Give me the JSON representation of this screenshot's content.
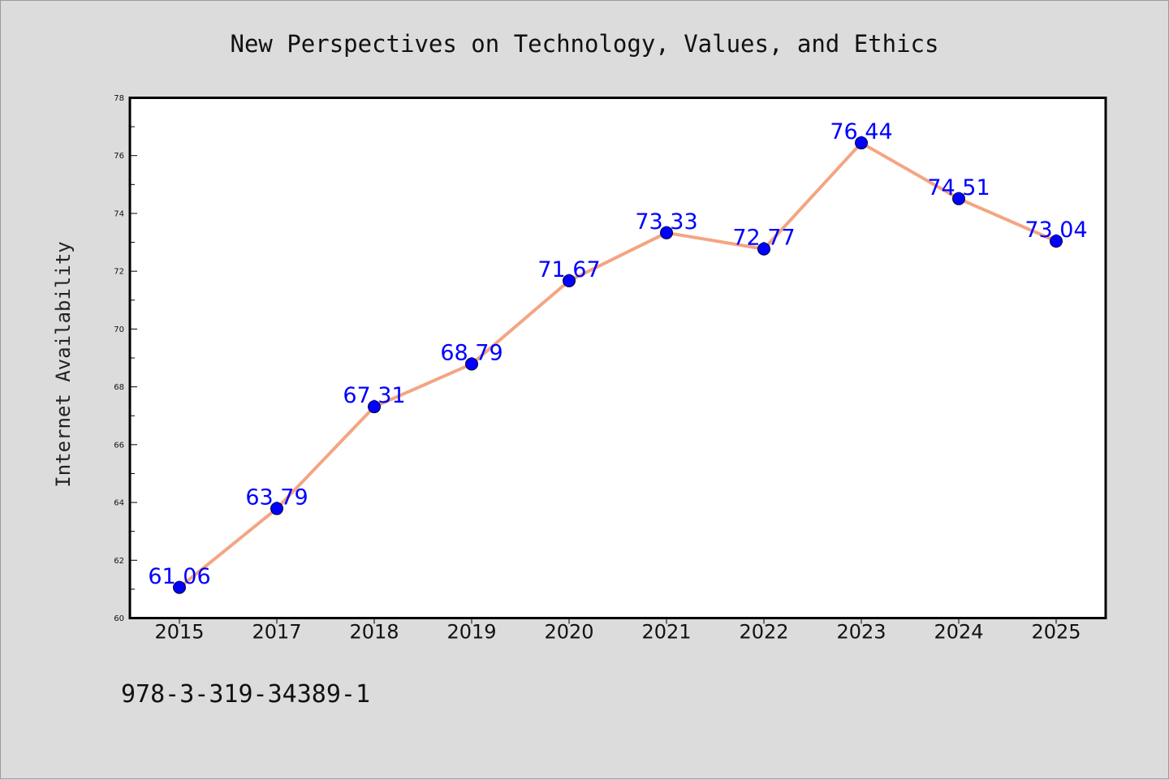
{
  "chart_data": {
    "type": "line",
    "title": "New Perspectives on Technology, Values, and Ethics",
    "xlabel": "",
    "ylabel": "Internet Availability",
    "categories": [
      "2015",
      "2017",
      "2018",
      "2019",
      "2020",
      "2021",
      "2022",
      "2023",
      "2024",
      "2025"
    ],
    "series": [
      {
        "values": [
          61.06,
          63.79,
          67.31,
          68.79,
          71.67,
          73.33,
          72.77,
          76.44,
          74.51,
          73.04
        ],
        "labels": [
          "61.06",
          "63.79",
          "67.31",
          "68.79",
          "71.67",
          "73.33",
          "72.77",
          "76.44",
          "74.51",
          "73.04"
        ],
        "line_color": "#f4a582",
        "marker_color": "#0000ff"
      }
    ],
    "ylim": [
      60,
      78
    ],
    "yticks": [
      "60",
      "62",
      "64",
      "66",
      "68",
      "70",
      "72",
      "74",
      "76",
      "78"
    ],
    "grid": false,
    "legend": "none"
  },
  "footer": {
    "code": "978-3-319-34389-1"
  },
  "colors": {
    "background": "#dcdcdc",
    "plot_background": "#ffffff",
    "line": "#f4a582",
    "marker": "#0000ff",
    "data_label": "#0000ff"
  }
}
